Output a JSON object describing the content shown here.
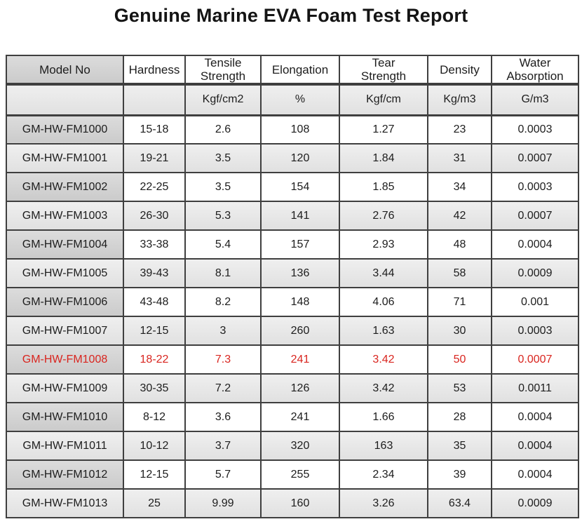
{
  "title": "Genuine Marine EVA Foam Test Report",
  "colors": {
    "highlight_red": "#d9251f",
    "border": "#3f3f3f",
    "zebra_gray": "#e6e6e6",
    "model_column_gray": "#d1d1d1"
  },
  "table": {
    "columns": [
      {
        "label": "Model No",
        "unit": ""
      },
      {
        "label": "Hardness",
        "unit": ""
      },
      {
        "label": "Tensile\nStrength",
        "unit": "Kgf/cm2"
      },
      {
        "label": "Elongation",
        "unit": "%"
      },
      {
        "label": "Tear\nStrength",
        "unit": "Kgf/cm"
      },
      {
        "label": "Density",
        "unit": "Kg/m3"
      },
      {
        "label": "Water\nAbsorption",
        "unit": "G/m3"
      }
    ],
    "highlight_row_index": 8,
    "rows": [
      [
        "GM-HW-FM1000",
        "15-18",
        "2.6",
        "108",
        "1.27",
        "23",
        "0.0003"
      ],
      [
        "GM-HW-FM1001",
        "19-21",
        "3.5",
        "120",
        "1.84",
        "31",
        "0.0007"
      ],
      [
        "GM-HW-FM1002",
        "22-25",
        "3.5",
        "154",
        "1.85",
        "34",
        "0.0003"
      ],
      [
        "GM-HW-FM1003",
        "26-30",
        "5.3",
        "141",
        "2.76",
        "42",
        "0.0007"
      ],
      [
        "GM-HW-FM1004",
        "33-38",
        "5.4",
        "157",
        "2.93",
        "48",
        "0.0004"
      ],
      [
        "GM-HW-FM1005",
        "39-43",
        "8.1",
        "136",
        "3.44",
        "58",
        "0.0009"
      ],
      [
        "GM-HW-FM1006",
        "43-48",
        "8.2",
        "148",
        "4.06",
        "71",
        "0.001"
      ],
      [
        "GM-HW-FM1007",
        "12-15",
        "3",
        "260",
        "1.63",
        "30",
        "0.0003"
      ],
      [
        "GM-HW-FM1008",
        "18-22",
        "7.3",
        "241",
        "3.42",
        "50",
        "0.0007"
      ],
      [
        "GM-HW-FM1009",
        "30-35",
        "7.2",
        "126",
        "3.42",
        "53",
        "0.0011"
      ],
      [
        "GM-HW-FM1010",
        "8-12",
        "3.6",
        "241",
        "1.66",
        "28",
        "0.0004"
      ],
      [
        "GM-HW-FM1011",
        "10-12",
        "3.7",
        "320",
        "163",
        "35",
        "0.0004"
      ],
      [
        "GM-HW-FM1012",
        "12-15",
        "5.7",
        "255",
        "2.34",
        "39",
        "0.0004"
      ],
      [
        "GM-HW-FM1013",
        "25",
        "9.99",
        "160",
        "3.26",
        "63.4",
        "0.0009"
      ]
    ]
  }
}
